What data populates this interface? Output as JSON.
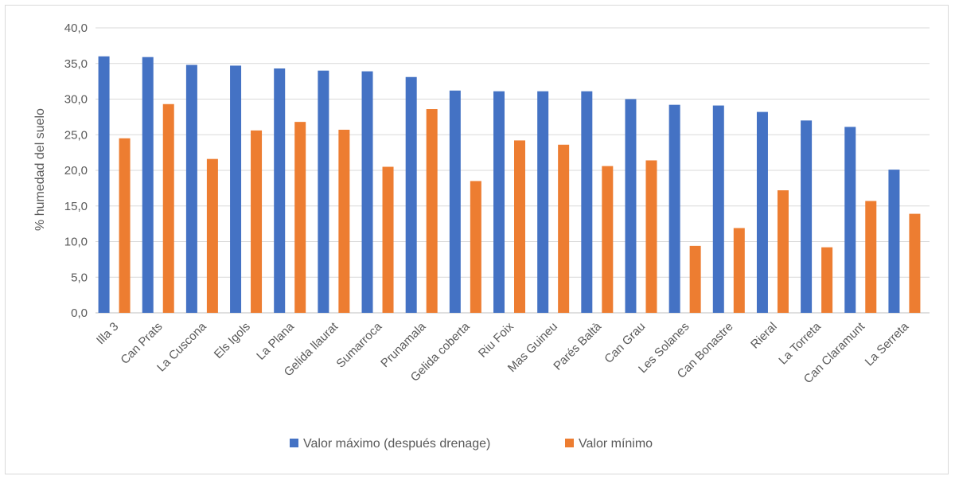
{
  "chart_data": {
    "type": "bar",
    "ylabel": "% humedad del suelo",
    "ylim": [
      0,
      40
    ],
    "yticks": [
      "0,0",
      "5,0",
      "10,0",
      "15,0",
      "20,0",
      "25,0",
      "30,0",
      "35,0",
      "40,0"
    ],
    "grid": true,
    "legend_position": "bottom",
    "categories": [
      "Illa 3",
      "Can Prats",
      "La Cuscona",
      "Els Igols",
      "La Plana",
      "Gelida llaurat",
      "Sumarroca",
      "Prunamala",
      "Gelida coberta",
      "Riu Foix",
      "Mas Guineu",
      "Parés Baltà",
      "Can Grau",
      "Les Solanes",
      "Can Bonastre",
      "Rieral",
      "La Torreta",
      "Can Claramunt",
      "La Serreta"
    ],
    "series": [
      {
        "name": "Valor máximo (después drenage)",
        "color": "#4472C4",
        "values": [
          36.0,
          35.9,
          34.8,
          34.7,
          34.3,
          34.0,
          33.9,
          33.1,
          31.2,
          31.1,
          31.1,
          31.1,
          30.0,
          29.2,
          29.1,
          28.2,
          27.0,
          26.1,
          20.1
        ]
      },
      {
        "name": "Valor mínimo",
        "color": "#ED7D31",
        "values": [
          24.5,
          29.3,
          21.6,
          25.6,
          26.8,
          25.7,
          20.5,
          28.6,
          18.5,
          24.2,
          23.6,
          20.6,
          21.4,
          9.4,
          11.9,
          17.2,
          9.2,
          15.7,
          13.9
        ]
      }
    ]
  }
}
